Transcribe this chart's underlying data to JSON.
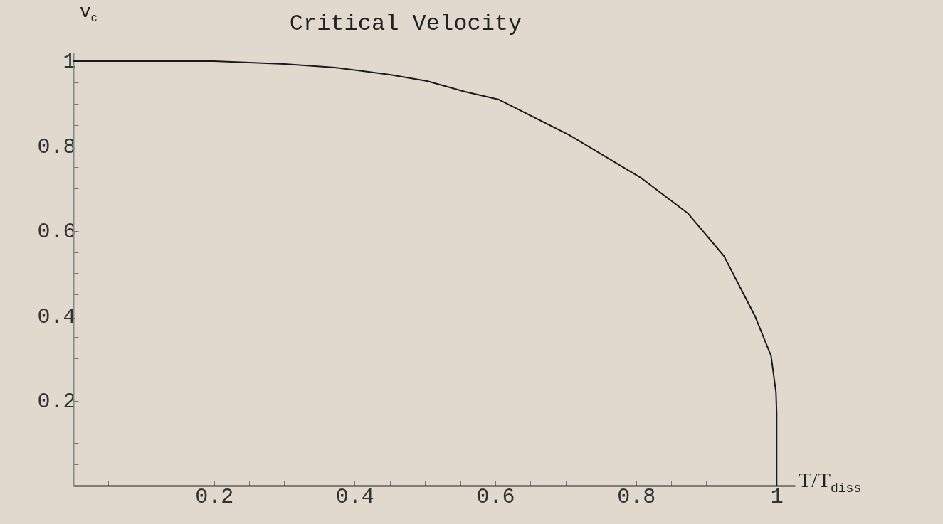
{
  "chart_data": {
    "type": "line",
    "title": "Critical Velocity",
    "xlabel": "T/T$_{diss}$",
    "ylabel": "v$_{c}$",
    "xlim": [
      0,
      1.026
    ],
    "ylim": [
      0,
      1.02
    ],
    "xticks": [
      {
        "value": 0.05,
        "label": null
      },
      {
        "value": 0.1,
        "label": null
      },
      {
        "value": 0.15,
        "label": null
      },
      0.2,
      {
        "value": 0.25,
        "label": null
      },
      {
        "value": 0.3,
        "label": null
      },
      {
        "value": 0.35,
        "label": null
      },
      0.4,
      {
        "value": 0.45,
        "label": null
      },
      {
        "value": 0.5,
        "label": null
      },
      {
        "value": 0.55,
        "label": null
      },
      0.6,
      {
        "value": 0.65,
        "label": null
      },
      {
        "value": 0.7,
        "label": null
      },
      {
        "value": 0.75,
        "label": null
      },
      0.8,
      {
        "value": 0.85,
        "label": null
      },
      {
        "value": 0.9,
        "label": null
      },
      {
        "value": 0.95,
        "label": null
      },
      1
    ],
    "yticks": [
      {
        "value": 0.05,
        "label": null
      },
      {
        "value": 0.1,
        "label": null
      },
      {
        "value": 0.15,
        "label": null
      },
      0.2,
      {
        "value": 0.25,
        "label": null
      },
      {
        "value": 0.3,
        "label": null
      },
      {
        "value": 0.35,
        "label": null
      },
      0.4,
      {
        "value": 0.45,
        "label": null
      },
      {
        "value": 0.5,
        "label": null
      },
      {
        "value": 0.55,
        "label": null
      },
      0.6,
      {
        "value": 0.65,
        "label": null
      },
      {
        "value": 0.7,
        "label": null
      },
      {
        "value": 0.75,
        "label": null
      },
      0.8,
      {
        "value": 0.85,
        "label": null
      },
      {
        "value": 0.9,
        "label": null
      },
      {
        "value": 0.95,
        "label": null
      },
      1
    ],
    "series": [
      {
        "color": "#1a1a1a",
        "x": [
          0,
          0.1,
          0.2,
          0.3,
          0.372,
          0.45,
          0.503,
          0.557,
          0.604,
          0.705,
          0.807,
          0.874,
          0.925,
          0.969,
          0.992,
          0.999,
          1,
          1
        ],
        "values": [
          1,
          1,
          1,
          0.993,
          0.985,
          0.968,
          0.953,
          0.928,
          0.91,
          0.826,
          0.725,
          0.641,
          0.541,
          0.4,
          0.306,
          0.22,
          0.17,
          0
        ]
      }
    ]
  }
}
